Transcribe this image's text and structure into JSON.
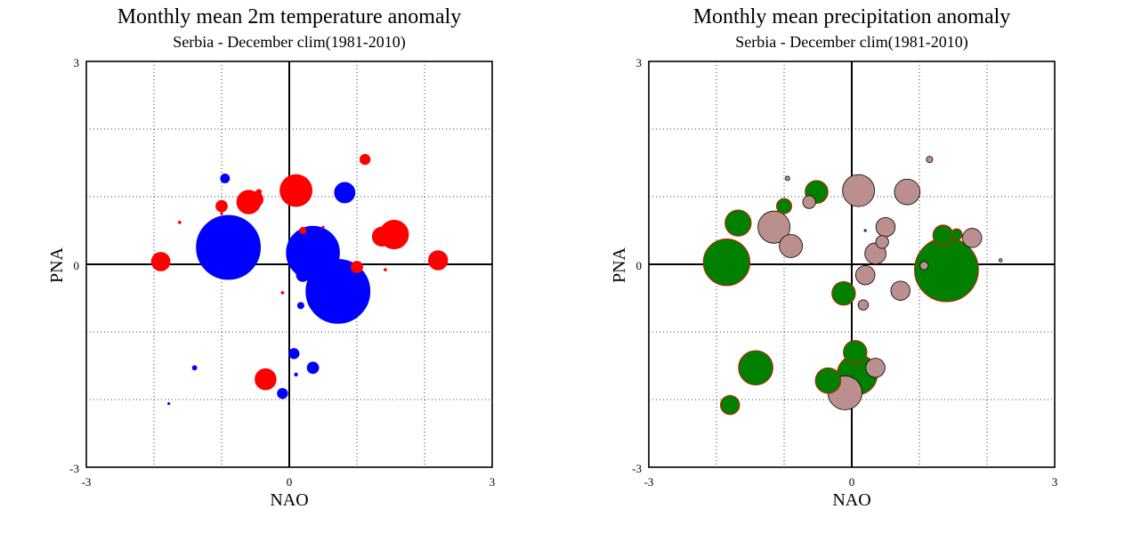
{
  "chart_data": [
    {
      "type": "scatter",
      "title": "Monthly mean 2m temperature anomaly",
      "subtitle": "Serbia - December  clim(1981-2010)",
      "xlabel": "NAO",
      "ylabel": "PNA",
      "xlim": [
        -3,
        3
      ],
      "ylim": [
        -3,
        3
      ],
      "x_tick_labels": [
        "-3",
        "0",
        "3"
      ],
      "y_tick_labels": [
        "-3",
        "0",
        "3"
      ],
      "grid": true,
      "colors": {
        "positive": "#ff0000",
        "negative": "#0000ff"
      },
      "points": [
        {
          "x": -0.9,
          "y": 0.25,
          "size": 1.0,
          "sign": "negative"
        },
        {
          "x": 0.72,
          "y": -0.4,
          "size": 1.0,
          "sign": "negative"
        },
        {
          "x": 0.35,
          "y": 0.17,
          "size": 0.83,
          "sign": "negative"
        },
        {
          "x": 0.82,
          "y": 1.06,
          "size": 0.32,
          "sign": "negative"
        },
        {
          "x": 0.2,
          "y": -0.16,
          "size": 0.2,
          "sign": "negative"
        },
        {
          "x": 0.35,
          "y": -1.53,
          "size": 0.18,
          "sign": "negative"
        },
        {
          "x": 0.07,
          "y": -1.32,
          "size": 0.16,
          "sign": "negative"
        },
        {
          "x": -0.1,
          "y": -1.91,
          "size": 0.16,
          "sign": "negative"
        },
        {
          "x": -0.95,
          "y": 1.27,
          "size": 0.14,
          "sign": "negative"
        },
        {
          "x": 0.17,
          "y": -0.61,
          "size": 0.1,
          "sign": "negative"
        },
        {
          "x": -1.4,
          "y": -1.53,
          "size": 0.07,
          "sign": "negative"
        },
        {
          "x": 0.1,
          "y": -1.63,
          "size": 0.05,
          "sign": "negative"
        },
        {
          "x": -1.78,
          "y": -2.06,
          "size": 0.03,
          "sign": "negative"
        },
        {
          "x": 0.1,
          "y": 1.09,
          "size": 0.5,
          "sign": "positive"
        },
        {
          "x": 1.55,
          "y": 0.44,
          "size": 0.45,
          "sign": "positive"
        },
        {
          "x": 1.37,
          "y": 0.41,
          "size": 0.3,
          "sign": "positive"
        },
        {
          "x": -0.6,
          "y": 0.92,
          "size": 0.37,
          "sign": "positive"
        },
        {
          "x": -0.35,
          "y": -1.7,
          "size": 0.33,
          "sign": "positive"
        },
        {
          "x": 2.2,
          "y": 0.06,
          "size": 0.3,
          "sign": "positive"
        },
        {
          "x": -1.9,
          "y": 0.04,
          "size": 0.29,
          "sign": "positive"
        },
        {
          "x": -0.5,
          "y": 0.96,
          "size": 0.24,
          "sign": "positive"
        },
        {
          "x": -1.0,
          "y": 0.86,
          "size": 0.18,
          "sign": "positive"
        },
        {
          "x": 1.0,
          "y": -0.04,
          "size": 0.18,
          "sign": "positive"
        },
        {
          "x": 1.12,
          "y": 1.55,
          "size": 0.16,
          "sign": "positive"
        },
        {
          "x": -0.45,
          "y": 1.07,
          "size": 0.08,
          "sign": "positive"
        },
        {
          "x": 0.2,
          "y": 0.5,
          "size": 0.1,
          "sign": "positive"
        },
        {
          "x": -1.62,
          "y": 0.62,
          "size": 0.04,
          "sign": "positive"
        },
        {
          "x": -0.1,
          "y": -0.42,
          "size": 0.04,
          "sign": "positive"
        },
        {
          "x": 1.42,
          "y": -0.08,
          "size": 0.04,
          "sign": "positive"
        },
        {
          "x": 0.5,
          "y": 0.55,
          "size": 0.03,
          "sign": "positive"
        },
        {
          "x": -1.0,
          "y": 0.75,
          "size": 0.03,
          "sign": "positive"
        }
      ]
    },
    {
      "type": "scatter",
      "title": "Monthly mean precipitation anomaly",
      "subtitle": "Serbia - December  clim(1981-2010)",
      "xlabel": "NAO",
      "ylabel": "PNA",
      "xlim": [
        -3,
        3
      ],
      "ylim": [
        -3,
        3
      ],
      "x_tick_labels": [
        "-3",
        "0",
        "3"
      ],
      "y_tick_labels": [
        "-3",
        "0",
        "3"
      ],
      "grid": true,
      "colors": {
        "positive": "#bc8f8f",
        "negative": "#008000"
      },
      "points": [
        {
          "x": 1.4,
          "y": -0.08,
          "size": 1.0,
          "sign": "negative"
        },
        {
          "x": -1.85,
          "y": 0.03,
          "size": 0.73,
          "sign": "negative"
        },
        {
          "x": 0.08,
          "y": -1.63,
          "size": 0.63,
          "sign": "negative"
        },
        {
          "x": -1.42,
          "y": -1.53,
          "size": 0.54,
          "sign": "negative"
        },
        {
          "x": -1.68,
          "y": 0.61,
          "size": 0.41,
          "sign": "negative"
        },
        {
          "x": -0.35,
          "y": -1.72,
          "size": 0.4,
          "sign": "negative"
        },
        {
          "x": -0.12,
          "y": -0.43,
          "size": 0.37,
          "sign": "negative"
        },
        {
          "x": 0.05,
          "y": -1.3,
          "size": 0.37,
          "sign": "negative"
        },
        {
          "x": -0.52,
          "y": 1.07,
          "size": 0.36,
          "sign": "negative"
        },
        {
          "x": 1.35,
          "y": 0.43,
          "size": 0.32,
          "sign": "negative"
        },
        {
          "x": -1.8,
          "y": -2.08,
          "size": 0.3,
          "sign": "negative"
        },
        {
          "x": -1.0,
          "y": 0.86,
          "size": 0.24,
          "sign": "negative"
        },
        {
          "x": 1.55,
          "y": 0.44,
          "size": 0.18,
          "sign": "negative"
        },
        {
          "x": -0.1,
          "y": -1.9,
          "size": 0.53,
          "sign": "positive"
        },
        {
          "x": 0.1,
          "y": 1.09,
          "size": 0.5,
          "sign": "positive"
        },
        {
          "x": -1.15,
          "y": 0.55,
          "size": 0.5,
          "sign": "positive"
        },
        {
          "x": 0.82,
          "y": 1.07,
          "size": 0.4,
          "sign": "positive"
        },
        {
          "x": -0.9,
          "y": 0.27,
          "size": 0.36,
          "sign": "positive"
        },
        {
          "x": 0.35,
          "y": 0.16,
          "size": 0.33,
          "sign": "positive"
        },
        {
          "x": 0.72,
          "y": -0.39,
          "size": 0.3,
          "sign": "positive"
        },
        {
          "x": 0.5,
          "y": 0.55,
          "size": 0.3,
          "sign": "positive"
        },
        {
          "x": 0.35,
          "y": -1.53,
          "size": 0.3,
          "sign": "positive"
        },
        {
          "x": 0.2,
          "y": -0.16,
          "size": 0.3,
          "sign": "positive"
        },
        {
          "x": 1.78,
          "y": 0.39,
          "size": 0.3,
          "sign": "positive"
        },
        {
          "x": -0.63,
          "y": 0.92,
          "size": 0.2,
          "sign": "positive"
        },
        {
          "x": 0.45,
          "y": 0.33,
          "size": 0.2,
          "sign": "positive"
        },
        {
          "x": 0.17,
          "y": -0.6,
          "size": 0.16,
          "sign": "positive"
        },
        {
          "x": 1.07,
          "y": -0.02,
          "size": 0.13,
          "sign": "positive"
        },
        {
          "x": 1.15,
          "y": 1.55,
          "size": 0.1,
          "sign": "positive"
        },
        {
          "x": -0.95,
          "y": 1.27,
          "size": 0.07,
          "sign": "positive"
        },
        {
          "x": 2.2,
          "y": 0.06,
          "size": 0.05,
          "sign": "positive"
        },
        {
          "x": 0.2,
          "y": 0.5,
          "size": 0.03,
          "sign": "positive"
        }
      ]
    }
  ]
}
